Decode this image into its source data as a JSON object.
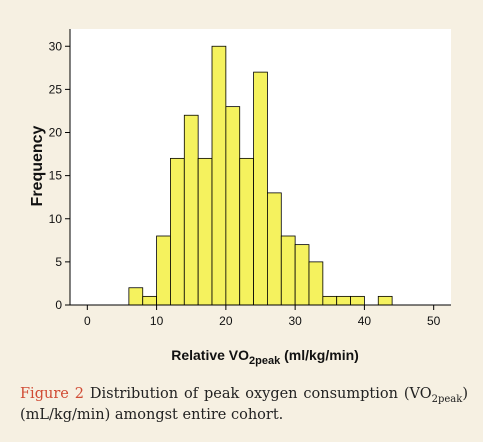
{
  "chart_data": {
    "type": "bar",
    "subtype": "histogram",
    "ylabel": "Frequency",
    "xlabel": {
      "prefix": "Relative VO",
      "sub": "2peak",
      "suffix": " (ml/kg/min)"
    },
    "xlim": [
      -2.5,
      52.5
    ],
    "ylim": [
      0,
      32
    ],
    "xticks": [
      0,
      10,
      20,
      30,
      40,
      50
    ],
    "yticks": [
      0,
      5,
      10,
      15,
      20,
      25,
      30
    ],
    "grid": false,
    "bar_color": "#f5f25e",
    "bins": [
      {
        "x0": 6,
        "x1": 8,
        "value": 2
      },
      {
        "x0": 8,
        "x1": 10,
        "value": 1
      },
      {
        "x0": 10,
        "x1": 12,
        "value": 8
      },
      {
        "x0": 12,
        "x1": 14,
        "value": 17
      },
      {
        "x0": 14,
        "x1": 16,
        "value": 22
      },
      {
        "x0": 16,
        "x1": 18,
        "value": 17
      },
      {
        "x0": 18,
        "x1": 20,
        "value": 30
      },
      {
        "x0": 20,
        "x1": 22,
        "value": 23
      },
      {
        "x0": 22,
        "x1": 24,
        "value": 17
      },
      {
        "x0": 24,
        "x1": 26,
        "value": 27
      },
      {
        "x0": 26,
        "x1": 28,
        "value": 13
      },
      {
        "x0": 28,
        "x1": 30,
        "value": 8
      },
      {
        "x0": 30,
        "x1": 32,
        "value": 7
      },
      {
        "x0": 32,
        "x1": 34,
        "value": 5
      },
      {
        "x0": 34,
        "x1": 36,
        "value": 1
      },
      {
        "x0": 36,
        "x1": 38,
        "value": 1
      },
      {
        "x0": 38,
        "x1": 40,
        "value": 1
      },
      {
        "x0": 42,
        "x1": 44,
        "value": 1
      }
    ]
  },
  "caption": {
    "label": "Figure 2",
    "text_before_sub": " Distribution of peak oxygen consumption (VO",
    "sub": "2peak",
    "text_after_sub": ") (mL/kg/min) amongst entire cohort."
  },
  "colors": {
    "background": "#f6f0e2",
    "plot_background": "#ffffff",
    "caption_label": "#d04b34",
    "bar": "#f5f25e"
  }
}
